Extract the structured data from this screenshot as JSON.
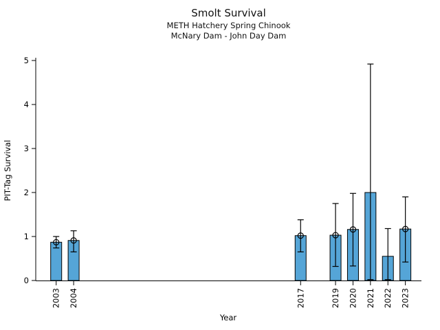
{
  "title": "Smolt Survival",
  "subtitle1": "METH Hatchery Spring Chinook",
  "subtitle2": "McNary Dam - John Day Dam",
  "chart_data": {
    "type": "bar",
    "title": "Smolt Survival",
    "subtitle": [
      "METH Hatchery Spring Chinook",
      "McNary Dam - John Day Dam"
    ],
    "xlabel": "Year",
    "ylabel": "PIT-Tag Survival",
    "x": [
      2003,
      2004,
      2017,
      2019,
      2020,
      2021,
      2022,
      2023
    ],
    "values": [
      0.87,
      0.91,
      1.02,
      1.03,
      1.16,
      2.0,
      0.55,
      1.17
    ],
    "error_low": [
      0.74,
      0.65,
      0.65,
      0.32,
      0.33,
      0.02,
      0.02,
      0.42
    ],
    "error_high": [
      1.0,
      1.13,
      1.38,
      1.75,
      1.98,
      4.92,
      1.18,
      1.9
    ],
    "point_markers": [
      true,
      true,
      true,
      true,
      true,
      false,
      false,
      true
    ],
    "xlim": [
      2001.83,
      2023.92
    ],
    "ylim": [
      0,
      5
    ],
    "yticks": [
      0,
      1,
      2,
      3,
      4,
      5
    ],
    "bar_color": "#55a5d7",
    "bar_edge_color": "#000000",
    "error_color": "#000000",
    "marker_style": "open-circle",
    "grid": false,
    "legend": false,
    "spines": [
      "left",
      "bottom"
    ]
  }
}
